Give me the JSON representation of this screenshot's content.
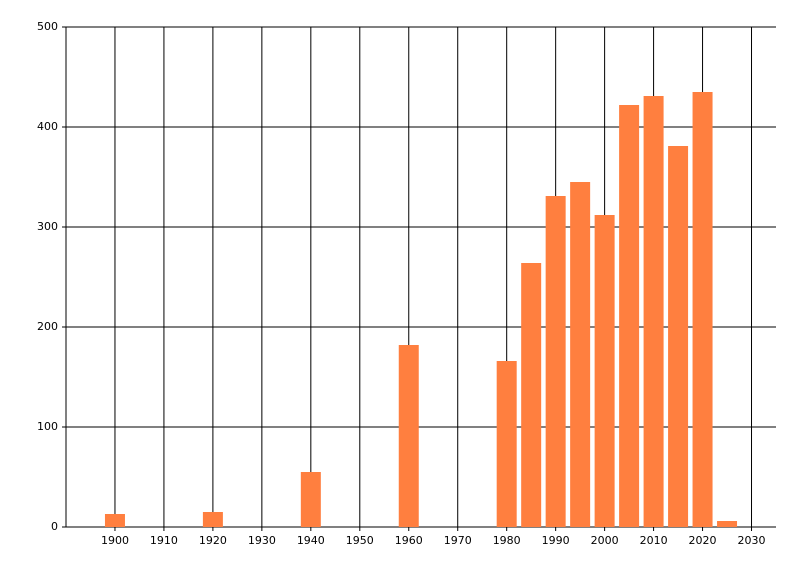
{
  "chart_data": {
    "type": "bar",
    "x": [
      1900,
      1920,
      1940,
      1960,
      1980,
      1985,
      1990,
      1995,
      2000,
      2005,
      2010,
      2015,
      2020,
      2025
    ],
    "values": [
      13,
      15,
      55,
      182,
      166,
      264,
      331,
      345,
      312,
      422,
      431,
      381,
      435,
      6
    ],
    "color": "#ff7f3f",
    "xlim": [
      1890,
      2035
    ],
    "xticks": [
      1900,
      1910,
      1920,
      1930,
      1940,
      1950,
      1960,
      1970,
      1980,
      1990,
      2000,
      2010,
      2020,
      2030
    ],
    "ylim": [
      0,
      500
    ],
    "yticks": [
      0,
      100,
      200,
      300,
      400,
      500
    ],
    "grid": true
  }
}
